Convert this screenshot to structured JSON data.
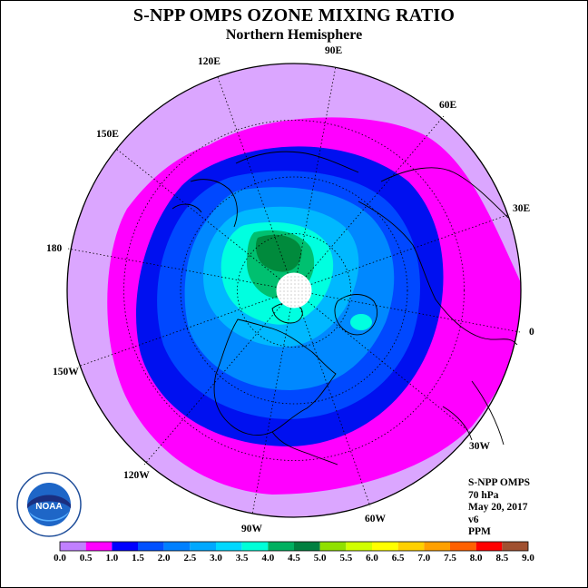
{
  "title": "S-NPP OMPS OZONE MIXING RATIO",
  "subtitle": "Northern Hemisphere",
  "longitude_labels": {
    "e90": "90E",
    "e120": "120E",
    "e60": "60E",
    "e150": "150E",
    "e30": "30E",
    "d180": "180",
    "d0": "0",
    "w150": "150W",
    "w30": "30W",
    "w120": "120W",
    "w60": "60W",
    "w90": "90W"
  },
  "info": {
    "instrument": "S-NPP OMPS",
    "level": "70 hPa",
    "date": "May 20, 2017",
    "version": "v6",
    "units": "PPM"
  },
  "logo_text": "NOAA",
  "colorbar": {
    "ticks": [
      "0.0",
      "0.5",
      "1.0",
      "1.5",
      "2.0",
      "2.5",
      "3.0",
      "3.5",
      "4.0",
      "4.5",
      "5.0",
      "5.5",
      "6.0",
      "6.5",
      "7.0",
      "7.5",
      "8.0",
      "8.5",
      "9.0"
    ],
    "colors": [
      "#c080ff",
      "#e0b0ff",
      "#ff00ff",
      "#0000ff",
      "#0050ff",
      "#0080ff",
      "#00a8ff",
      "#00d8ff",
      "#00ffd8",
      "#00b060",
      "#008040",
      "#90e000",
      "#d0ff00",
      "#ffff00",
      "#ffd000",
      "#ffa000",
      "#ff6000",
      "#ff0000",
      "#a05030"
    ]
  },
  "colors": {
    "light_violet": "#dba6ff",
    "magenta": "#ff00ff",
    "dark_blue": "#0010f0",
    "royal_blue": "#0048ff",
    "medium_blue": "#0088ff",
    "sky_blue": "#00b8ff",
    "cyan": "#00ffe0",
    "green": "#008a3c"
  }
}
